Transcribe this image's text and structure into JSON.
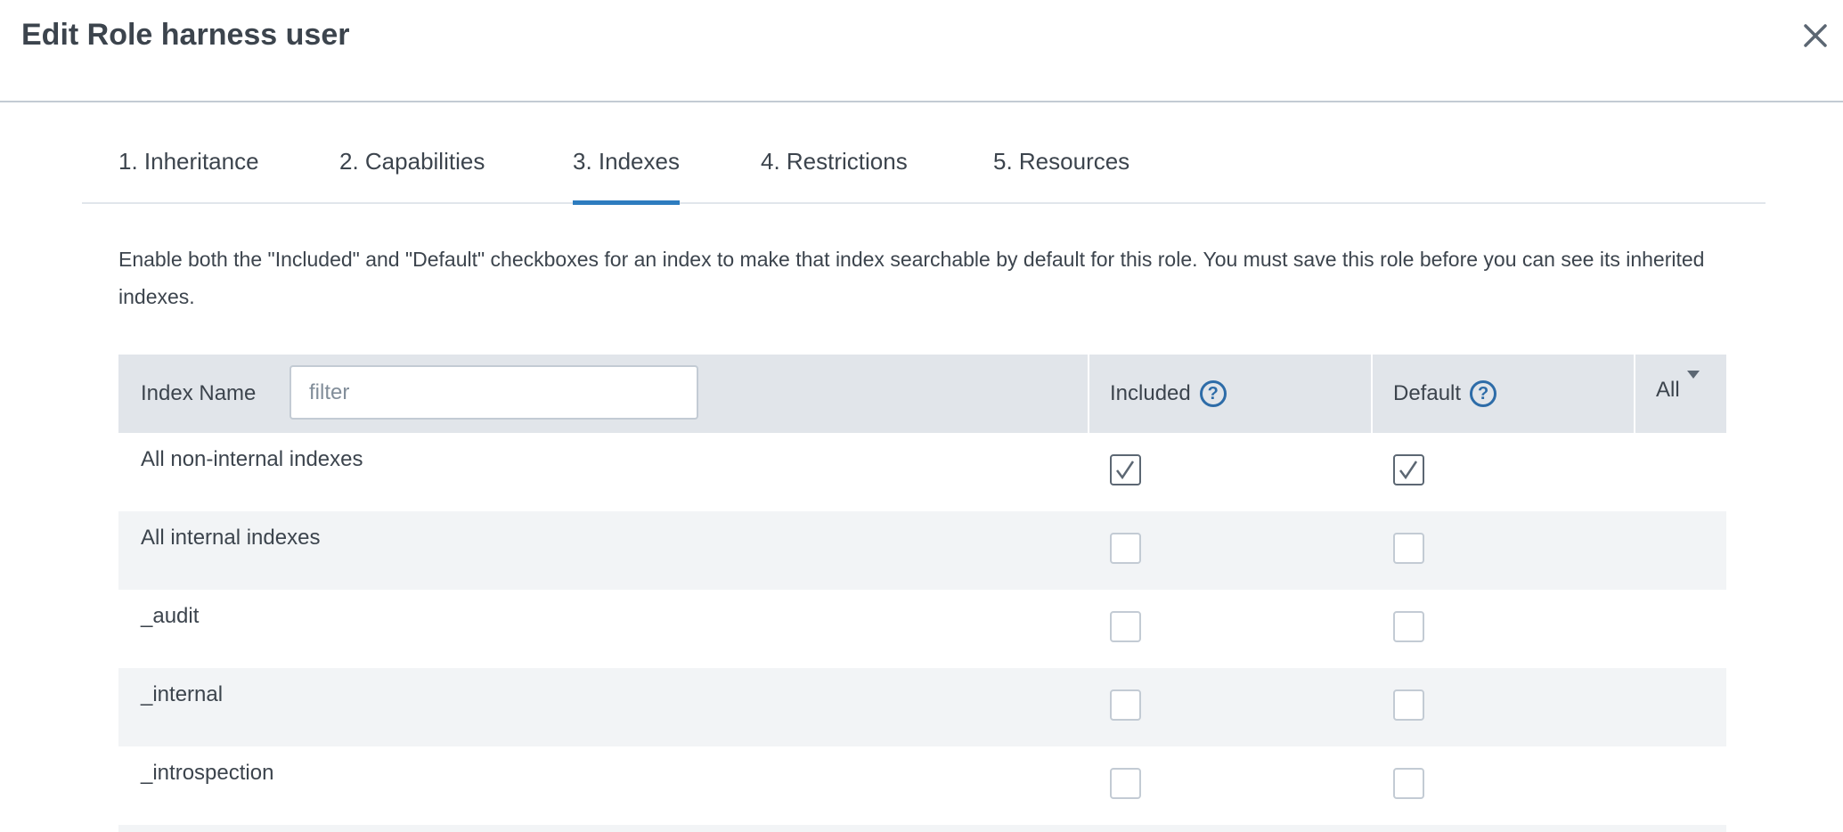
{
  "dialog": {
    "title": "Edit Role harness user",
    "close_icon": "close-icon"
  },
  "tabs": [
    {
      "label": "1. Inheritance"
    },
    {
      "label": "2. Capabilities"
    },
    {
      "label": "3. Indexes",
      "active": true
    },
    {
      "label": "4. Restrictions"
    },
    {
      "label": "5. Resources"
    }
  ],
  "description": "Enable both the \"Included\" and \"Default\" checkboxes for an index to make that index searchable by default for this role. You must save this role before you can see its inherited indexes.",
  "table": {
    "headers": {
      "name": "Index Name",
      "included": "Included",
      "default": "Default",
      "all": "All"
    },
    "filter": {
      "placeholder": "filter",
      "value": ""
    },
    "help_icon": "?",
    "rows": [
      {
        "name": "All non-internal indexes",
        "included": true,
        "default": true
      },
      {
        "name": "All internal indexes",
        "included": false,
        "default": false
      },
      {
        "name": "_audit",
        "included": false,
        "default": false
      },
      {
        "name": "_internal",
        "included": false,
        "default": false
      },
      {
        "name": "_introspection",
        "included": false,
        "default": false
      },
      {
        "name": "",
        "included": false,
        "default": false
      }
    ]
  },
  "colors": {
    "accent": "#2d7cbf",
    "header_bg": "#e1e5ea",
    "stripe": "#f2f4f6",
    "text": "#3c444d"
  }
}
